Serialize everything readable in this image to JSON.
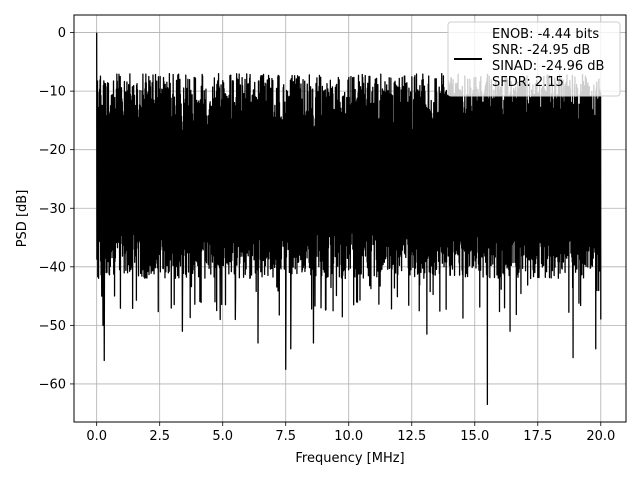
{
  "chart_data": {
    "type": "line",
    "title": "",
    "xlabel": "Frequency [MHz]",
    "ylabel": "PSD [dB]",
    "xlim": [
      -0.9,
      21.0
    ],
    "ylim": [
      -66.5,
      3.0
    ],
    "grid": true,
    "legend_placement": "top-right",
    "x_ticks": [
      0.0,
      2.5,
      5.0,
      7.5,
      10.0,
      12.5,
      15.0,
      17.5,
      20.0
    ],
    "x_tick_labels": [
      "0.0",
      "2.5",
      "5.0",
      "7.5",
      "10.0",
      "12.5",
      "15.0",
      "17.5",
      "20.0"
    ],
    "y_ticks": [
      0,
      -10,
      -20,
      -30,
      -40,
      -50,
      -60
    ],
    "y_tick_labels": [
      "0",
      "−10",
      "−20",
      "−30",
      "−40",
      "−50",
      "−60"
    ],
    "series": [
      {
        "name": "ENOB: -4.44 bits\nSNR: -24.95 dB\nSINAD: -24.96 dB\nSFDR: 2.15",
        "legend_lines": [
          "ENOB: -4.44 bits",
          "SNR: -24.95 dB",
          "SINAD: -24.96 dB",
          "SFDR: 2.15"
        ],
        "color": "#000000",
        "x_range": [
          0.0,
          20.0
        ],
        "noise_band_top": -13,
        "noise_band_bottom": -38,
        "notable_points": [
          {
            "x": 0.0,
            "y": 0.0
          },
          {
            "x": 0.05,
            "y": -25.0
          },
          {
            "x": 0.2,
            "y": -45.0
          },
          {
            "x": 0.25,
            "y": -50.0
          },
          {
            "x": 0.3,
            "y": -56.0
          },
          {
            "x": 3.4,
            "y": -51.0
          },
          {
            "x": 4.9,
            "y": -49.0
          },
          {
            "x": 5.5,
            "y": -49.0
          },
          {
            "x": 6.4,
            "y": -53.0
          },
          {
            "x": 7.5,
            "y": -57.5
          },
          {
            "x": 7.7,
            "y": -54.0
          },
          {
            "x": 8.6,
            "y": -53.0
          },
          {
            "x": 8.9,
            "y": -47.0
          },
          {
            "x": 13.1,
            "y": -51.5
          },
          {
            "x": 15.5,
            "y": -63.5
          },
          {
            "x": 16.4,
            "y": -51.0
          },
          {
            "x": 18.9,
            "y": -55.5
          },
          {
            "x": 19.8,
            "y": -54.0
          },
          {
            "x": 20.0,
            "y": -49.0
          }
        ]
      }
    ]
  }
}
